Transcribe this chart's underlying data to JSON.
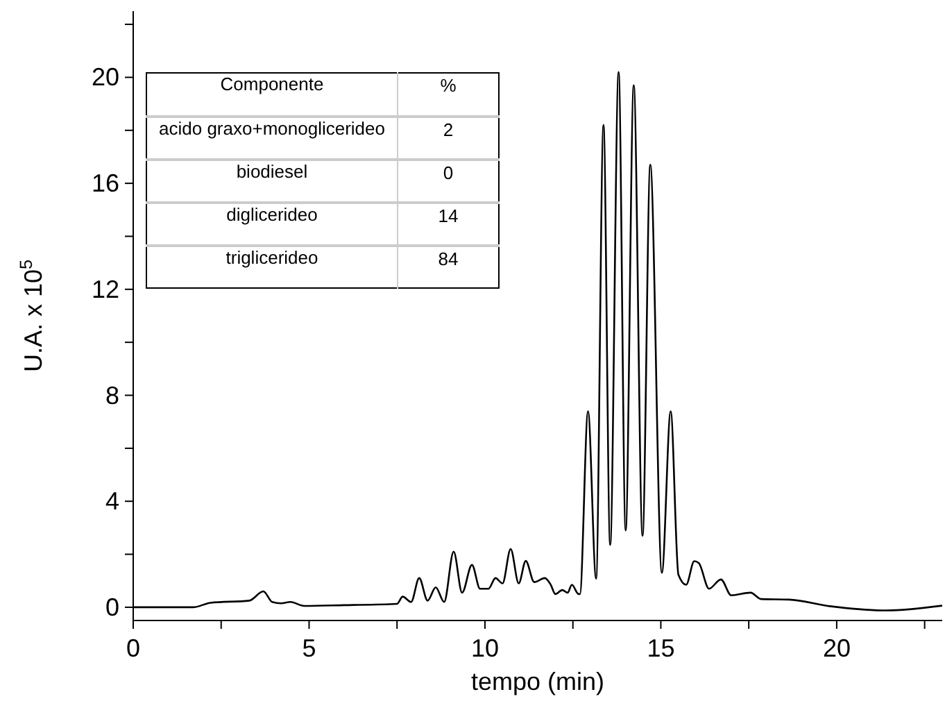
{
  "chart_data": {
    "type": "line",
    "xlabel": "tempo (min)",
    "ylabel": "U.A. x 10$^{5}$",
    "xlim": [
      0,
      23
    ],
    "ylim": [
      -0.5,
      22.5
    ],
    "xticks": [
      0,
      {
        "value": 2.5,
        "label": null
      },
      5,
      {
        "value": 7.5,
        "label": null
      },
      10,
      {
        "value": 12.5,
        "label": null
      },
      15,
      {
        "value": 17.5,
        "label": null
      },
      20,
      {
        "value": 22.5,
        "label": null
      }
    ],
    "yticks": [
      0,
      {
        "value": 2,
        "label": null
      },
      4,
      {
        "value": 6,
        "label": null
      },
      8,
      {
        "value": 10,
        "label": null
      },
      12,
      {
        "value": 14,
        "label": null
      },
      16,
      {
        "value": 18,
        "label": null
      },
      20,
      {
        "value": 22,
        "label": null
      }
    ],
    "grid": false,
    "marker": "none",
    "line_style": "solid",
    "annotations": [
      "Componente",
      "%",
      "acido graxo+monoglicerideo",
      "2",
      "biodiesel",
      "0",
      "diglicerideo",
      "14",
      "triglicerideo",
      "84"
    ],
    "series": [
      {
        "color": "#000000",
        "x": [
          0,
          1.7,
          2.2,
          3.3,
          3.7,
          3.95,
          4.2,
          4.47,
          4.86,
          6.0,
          7.5,
          7.66,
          7.9,
          8.13,
          8.37,
          8.6,
          8.84,
          9.11,
          9.35,
          9.63,
          9.86,
          10.1,
          10.3,
          10.5,
          10.73,
          10.96,
          11.16,
          11.4,
          11.7,
          11.87,
          12.0,
          12.2,
          12.35,
          12.47,
          12.66,
          12.7,
          12.93,
          13.16,
          13.37,
          13.56,
          13.8,
          14.0,
          14.23,
          14.48,
          14.7,
          15.03,
          15.28,
          15.5,
          15.72,
          15.95,
          16.08,
          16.37,
          16.71,
          17.0,
          17.55,
          17.85,
          18.64,
          19.8,
          21.4,
          23
        ],
        "values": [
          0,
          0,
          0.17,
          0.25,
          0.6,
          0.2,
          0.15,
          0.2,
          0.05,
          0.08,
          0.13,
          0.4,
          0.2,
          1.1,
          0.25,
          0.75,
          0.2,
          2.1,
          0.55,
          1.6,
          0.7,
          0.7,
          1.1,
          0.9,
          2.2,
          0.9,
          1.75,
          0.95,
          1.1,
          0.85,
          0.5,
          0.65,
          0.55,
          0.85,
          0.5,
          0.5,
          7.4,
          1.08,
          18.2,
          2.35,
          20.2,
          2.9,
          19.7,
          2.7,
          16.7,
          1.3,
          7.4,
          1.23,
          0.85,
          1.74,
          1.67,
          0.7,
          1.05,
          0.45,
          0.55,
          0.31,
          0.29,
          0.04,
          -0.12,
          0.06
        ]
      }
    ]
  }
}
